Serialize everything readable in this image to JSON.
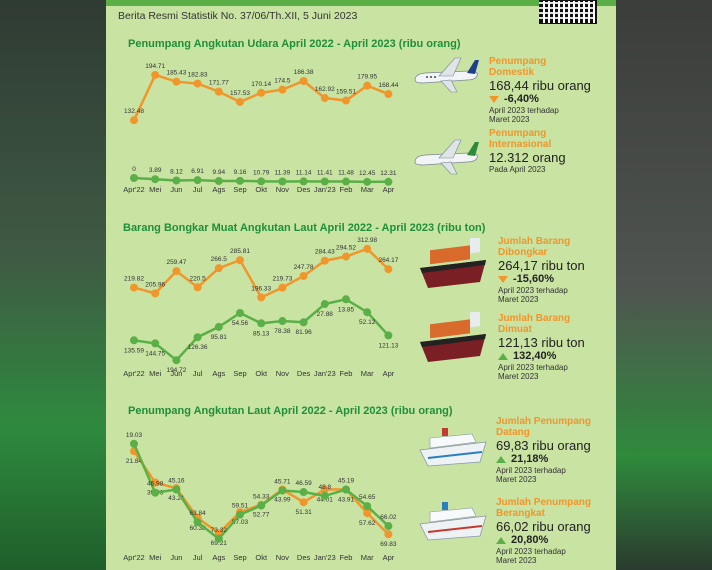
{
  "header": {
    "subtitle": "Berita Resmi Statistik No. 37/06/Th.XII, 5 Juni 2023"
  },
  "colors": {
    "orange": "#f0962b",
    "green": "#5ab047",
    "title_green": "#1f8f3a",
    "background": "#c9e3a3"
  },
  "chart_data": [
    {
      "type": "line",
      "title": "Penumpang Angkutan Udara April 2022 - April 2023 (ribu orang)",
      "categories": [
        "Apr'22",
        "Mei",
        "Jun",
        "Jul",
        "Ags",
        "Sep",
        "Okt",
        "Nov",
        "Des",
        "Jan'23",
        "Feb",
        "Mar",
        "Apr"
      ],
      "series": [
        {
          "name": "Penumpang Domestik",
          "color": "#f0962b",
          "values": [
            132.48,
            194.71,
            185.43,
            182.83,
            171.77,
            157.53,
            170.14,
            174.5,
            186.38,
            162.92,
            159.51,
            179.95,
            168.44
          ],
          "labels": [
            "132.48",
            "194.71",
            "185.43",
            "182.83",
            "171.77",
            "157.53",
            "170.14",
            "174.5",
            "186.38",
            "162.92",
            "159.51",
            "179.95",
            "168.44"
          ]
        },
        {
          "name": "Penumpang Internasional",
          "color": "#5ab047",
          "values": [
            0,
            3.89,
            8.12,
            6.91,
            9.94,
            9.16,
            10.79,
            11.39,
            11.14,
            11.41,
            11.48,
            12.45,
            12.31
          ],
          "labels": [
            "0",
            "3.89",
            "8.12",
            "6.91",
            "9.94",
            "9.16",
            "10.79",
            "11.39",
            "11.14",
            "11.41",
            "11.48",
            "12.45",
            "12.31"
          ]
        }
      ]
    },
    {
      "type": "line",
      "title": "Barang Bongkar Muat Angkutan Laut April 2022 - April 2023 (ribu ton)",
      "categories": [
        "Apr'22",
        "Mei",
        "Jun",
        "Jul",
        "Ags",
        "Sep",
        "Okt",
        "Nov",
        "Des",
        "Jan'23",
        "Feb",
        "Mar",
        "Apr"
      ],
      "series": [
        {
          "name": "Jumlah Barang Dibongkar",
          "color": "#f0962b",
          "values": [
            219.82,
            205.96,
            259.47,
            220.5,
            266.5,
            285.81,
            196.33,
            219.73,
            247.78,
            284.43,
            294.52,
            312.98,
            264.17
          ],
          "labels": [
            "219.82",
            "205.96",
            "259.47",
            "220.5",
            "266.5",
            "285.81",
            "196.33",
            "219.73",
            "247.78",
            "284.43",
            "294.52",
            "312.98",
            "264.17"
          ]
        },
        {
          "name": "Jumlah Barang Dimuat",
          "color": "#5ab047",
          "values": [
            135.59,
            144.75,
            194.72,
            126.36,
            95.81,
            54.56,
            85.13,
            78.38,
            81.96,
            27.88,
            13.85,
            52.12,
            121.13
          ],
          "labels": [
            "135.59",
            "144.75",
            "194.72",
            "126.36",
            "95.81",
            "54.56",
            "85.13",
            "78.38",
            "81.96",
            "27.88",
            "13.85",
            "52.12",
            "121.13"
          ]
        }
      ]
    },
    {
      "type": "line",
      "title": "Penumpang Angkutan Laut April 2022 - April 2023 (ribu orang)",
      "categories": [
        "Apr'22",
        "Mei",
        "Jun",
        "Jul",
        "Ags",
        "Sep",
        "Okt",
        "Nov",
        "Des",
        "Jan'23",
        "Feb",
        "Mar",
        "Apr"
      ],
      "series": [
        {
          "name": "Jumlah Penumpang Datang",
          "color": "#f0962b",
          "values": [
            21.84,
            39.96,
            43.21,
            60.38,
            69.21,
            57.03,
            52.77,
            43.99,
            51.31,
            44.01,
            43.91,
            57.62,
            69.83
          ],
          "labels": [
            "21.84",
            "39.96",
            "43.21",
            "60.38",
            "69.21",
            "57.03",
            "52.77",
            "43.99",
            "51.31",
            "44.01",
            "43.91",
            "57.62",
            "69.83"
          ]
        },
        {
          "name": "Jumlah Penumpang Berangkat",
          "color": "#5ab047",
          "values": [
            19.03,
            46.98,
            45.16,
            63.84,
            73.32,
            59.51,
            54.33,
            45.71,
            46.59,
            48.8,
            45.19,
            54.65,
            66.02
          ],
          "labels": [
            "19.03",
            "46.98",
            "45.16",
            "63.84",
            "73.32",
            "59.51",
            "54.33",
            "45.71",
            "46.59",
            "48.8",
            "45.19",
            "54.65",
            "66.02"
          ]
        }
      ]
    }
  ],
  "summaries": {
    "udara_dom": {
      "label1": "Penumpang",
      "label2": "Domestik",
      "value": "168,44 ribu orang",
      "change": "-6,40%",
      "note1": "April 2023 terhadap",
      "note2": "Maret  2023"
    },
    "udara_int": {
      "label1": "Penumpang",
      "label2": "Internasional",
      "value": "12.312 orang",
      "note1": "Pada April 2023"
    },
    "bongkar": {
      "label1": "Jumlah Barang",
      "label2": "Dibongkar",
      "value": "264,17 ribu ton",
      "change": "-15,60%",
      "note1": "April 2023 terhadap",
      "note2": "Maret  2023"
    },
    "muat": {
      "label1": "Jumlah Barang",
      "label2": "Dimuat",
      "value": "121,13 ribu ton",
      "change": "132,40%",
      "note1": "April 2023 terhadap",
      "note2": "Maret  2023"
    },
    "datang": {
      "label1": "Jumlah Penumpang",
      "label2": "Datang",
      "value": "69,83 ribu orang",
      "change": "21,18%",
      "note1": "April 2023 terhadap",
      "note2": "Maret  2023"
    },
    "berangkat": {
      "label1": "Jumlah Penumpang",
      "label2": "Berangkat",
      "value": "66,02 ribu orang",
      "change": "20,80%",
      "note1": "April 2023 terhadap",
      "note2": "Maret  2023"
    }
  }
}
